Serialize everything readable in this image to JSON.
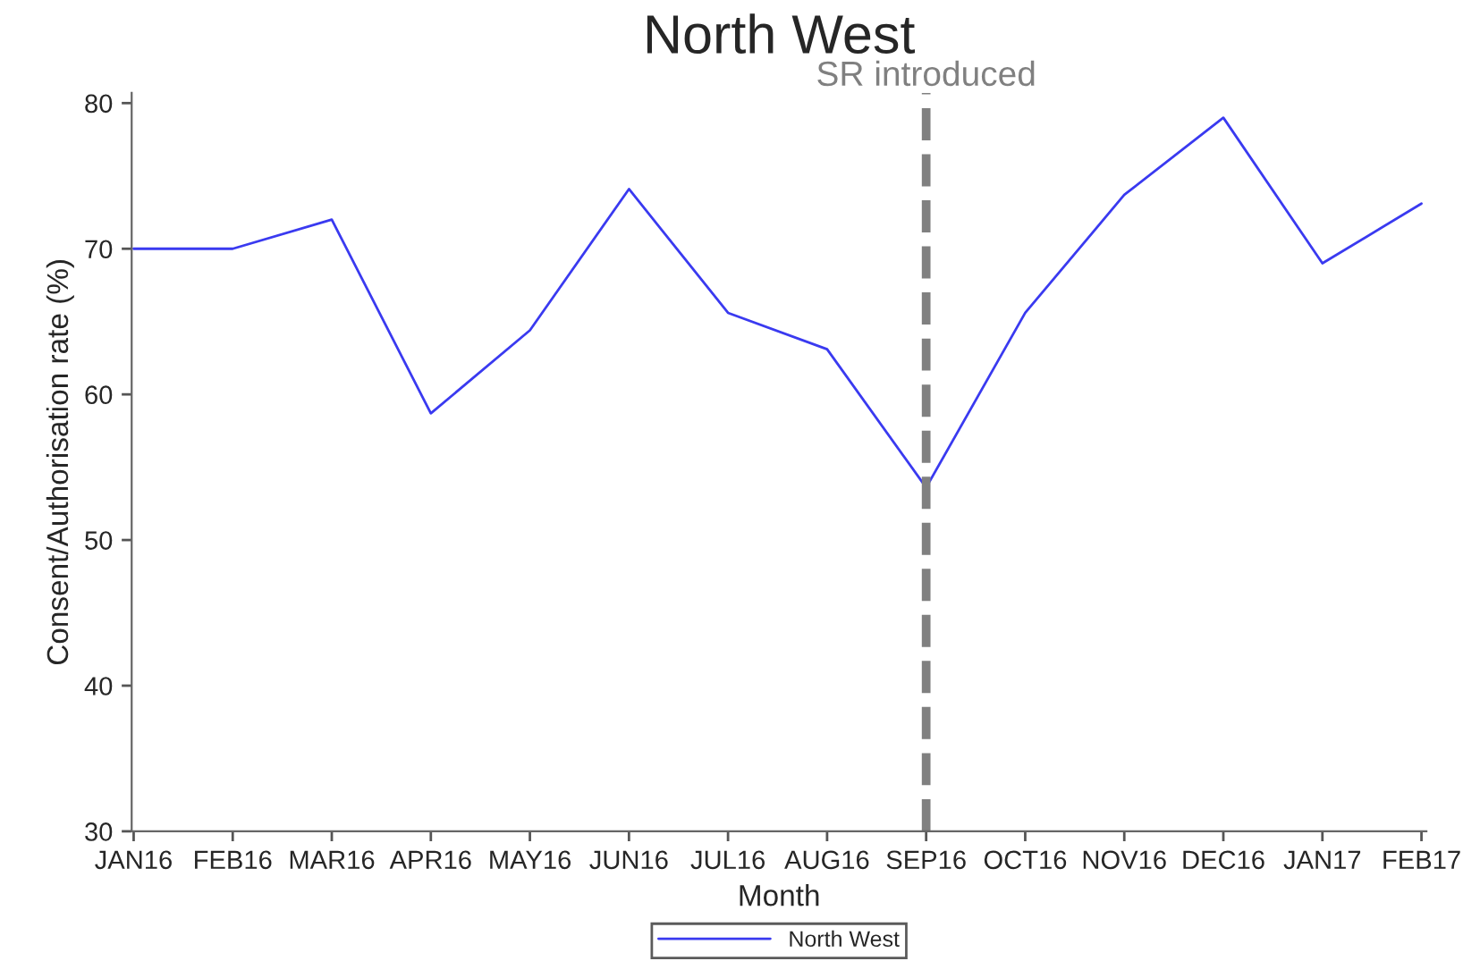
{
  "chart_data": {
    "type": "line",
    "title": "North West",
    "xlabel": "Month",
    "ylabel": "Consent/Authorisation rate (%)",
    "categories": [
      "JAN16",
      "FEB16",
      "MAR16",
      "APR16",
      "MAY16",
      "JUN16",
      "JUL16",
      "AUG16",
      "SEP16",
      "OCT16",
      "NOV16",
      "DEC16",
      "JAN17",
      "FEB17"
    ],
    "series": [
      {
        "name": "North West",
        "color": "#3a3af0",
        "values": [
          70,
          70,
          72,
          58.7,
          64.4,
          74.1,
          65.6,
          63.1,
          53.6,
          65.6,
          73.7,
          79.0,
          69.0,
          73.1
        ]
      }
    ],
    "ylim": [
      30,
      80.7
    ],
    "yticks": [
      30,
      40,
      50,
      60,
      70,
      80
    ],
    "ref_lines": [
      {
        "axis": "x",
        "value": "SEP16",
        "label": "SR introduced",
        "color": "#808080",
        "line_style": "dashed"
      }
    ],
    "grid": false,
    "legend": "bottom",
    "marker": "none",
    "line_style": "solid"
  }
}
